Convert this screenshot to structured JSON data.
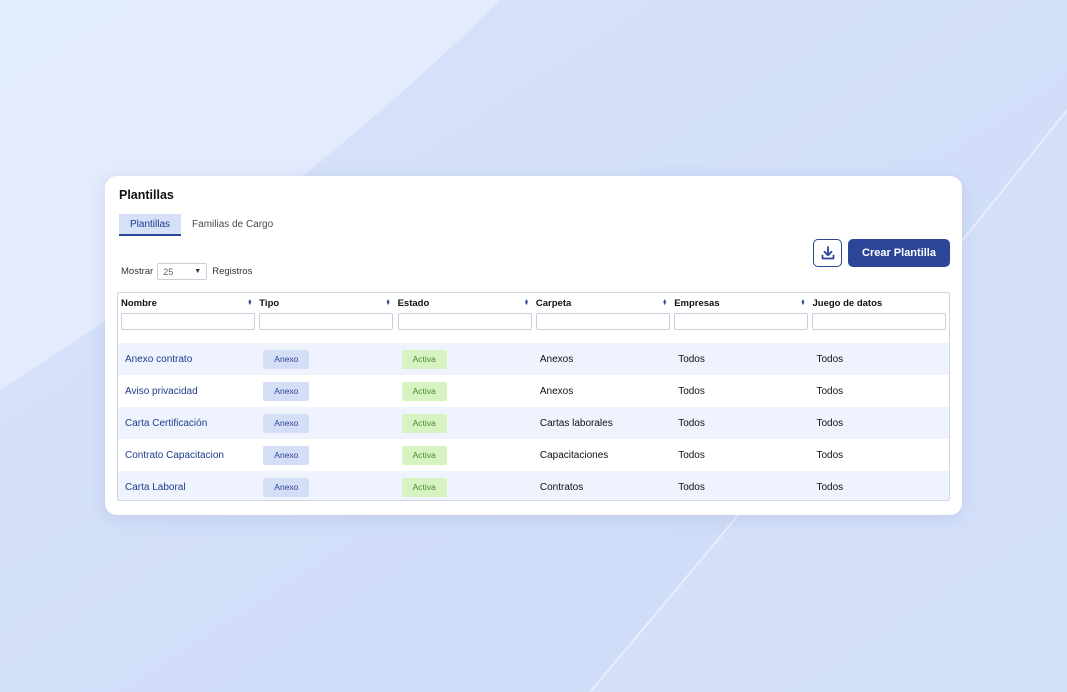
{
  "card": {
    "title": "Plantillas",
    "tabs": [
      {
        "label": "Plantillas",
        "active": true
      },
      {
        "label": "Familias de Cargo",
        "active": false
      }
    ]
  },
  "pagination": {
    "show_label": "Mostrar",
    "page_size": "25",
    "records_label": "Registros"
  },
  "actions": {
    "download_icon": "download-icon",
    "create_label": "Crear Plantilla"
  },
  "table": {
    "columns": [
      "Nombre",
      "Tipo",
      "Estado",
      "Carpeta",
      "Empresas",
      "Juego de datos"
    ],
    "rows": [
      {
        "nombre": "Anexo contrato",
        "tipo": "Anexo",
        "estado": "Activa",
        "carpeta": "Anexos",
        "empresas": "Todos",
        "juego": "Todos"
      },
      {
        "nombre": "Aviso privacidad",
        "tipo": "Anexo",
        "estado": "Activa",
        "carpeta": "Anexos",
        "empresas": "Todos",
        "juego": "Todos"
      },
      {
        "nombre": "Carta Certificación",
        "tipo": "Anexo",
        "estado": "Activa",
        "carpeta": "Cartas laborales",
        "empresas": "Todos",
        "juego": "Todos"
      },
      {
        "nombre": "Contrato Capacitacion",
        "tipo": "Anexo",
        "estado": "Activa",
        "carpeta": "Capacitaciones",
        "empresas": "Todos",
        "juego": "Todos"
      },
      {
        "nombre": "Carta Laboral",
        "tipo": "Anexo",
        "estado": "Activa",
        "carpeta": "Contratos",
        "empresas": "Todos",
        "juego": "Todos"
      }
    ]
  },
  "colors": {
    "primary": "#2b4597",
    "background": "#dbe5fb",
    "type_badge": "#d4def6",
    "state_badge": "#d7f3c2"
  }
}
